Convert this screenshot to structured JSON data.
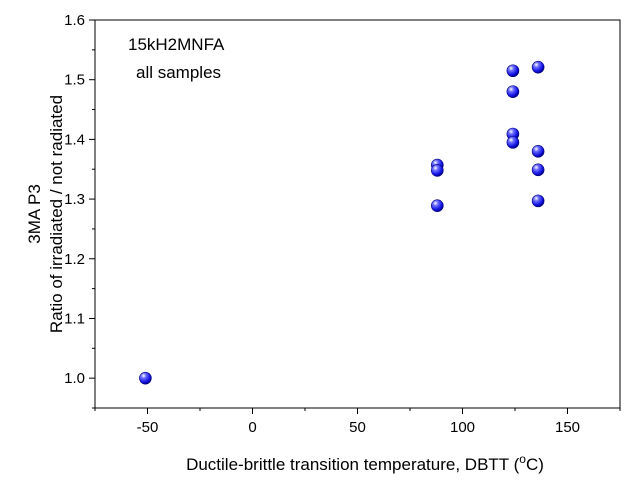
{
  "chart_data": {
    "type": "scatter",
    "title": "",
    "annotations": [
      "15kH2MNFA",
      "all samples"
    ],
    "xlabel": "Ductile-brittle transition temperature, DBTT (",
    "xlabel_unit_sup": "o",
    "xlabel_unit_tail": "C)",
    "ylabel_line1": "3MA  P3",
    "ylabel_line2": "Ratio of irradiated / not radiated",
    "xlim": [
      -75,
      175
    ],
    "ylim": [
      0.95,
      1.6
    ],
    "x_ticks": [
      -50,
      0,
      50,
      100,
      150
    ],
    "y_ticks": [
      1.0,
      1.1,
      1.2,
      1.3,
      1.4,
      1.5,
      1.6
    ],
    "x_tick_labels": [
      "-50",
      "0",
      "50",
      "100",
      "150"
    ],
    "y_tick_labels": [
      "1.0",
      "1.1",
      "1.2",
      "1.3",
      "1.4",
      "1.5",
      "1.6"
    ],
    "grid": false,
    "legend": "none",
    "marker_color": "#1a1aff",
    "points": [
      {
        "x": -51,
        "y": 1.0
      },
      {
        "x": 88,
        "y": 1.357
      },
      {
        "x": 88,
        "y": 1.348
      },
      {
        "x": 88,
        "y": 1.289
      },
      {
        "x": 124,
        "y": 1.515
      },
      {
        "x": 124,
        "y": 1.48
      },
      {
        "x": 124,
        "y": 1.409
      },
      {
        "x": 124,
        "y": 1.395
      },
      {
        "x": 136,
        "y": 1.521
      },
      {
        "x": 136,
        "y": 1.38
      },
      {
        "x": 136,
        "y": 1.349
      },
      {
        "x": 136,
        "y": 1.297
      }
    ]
  }
}
